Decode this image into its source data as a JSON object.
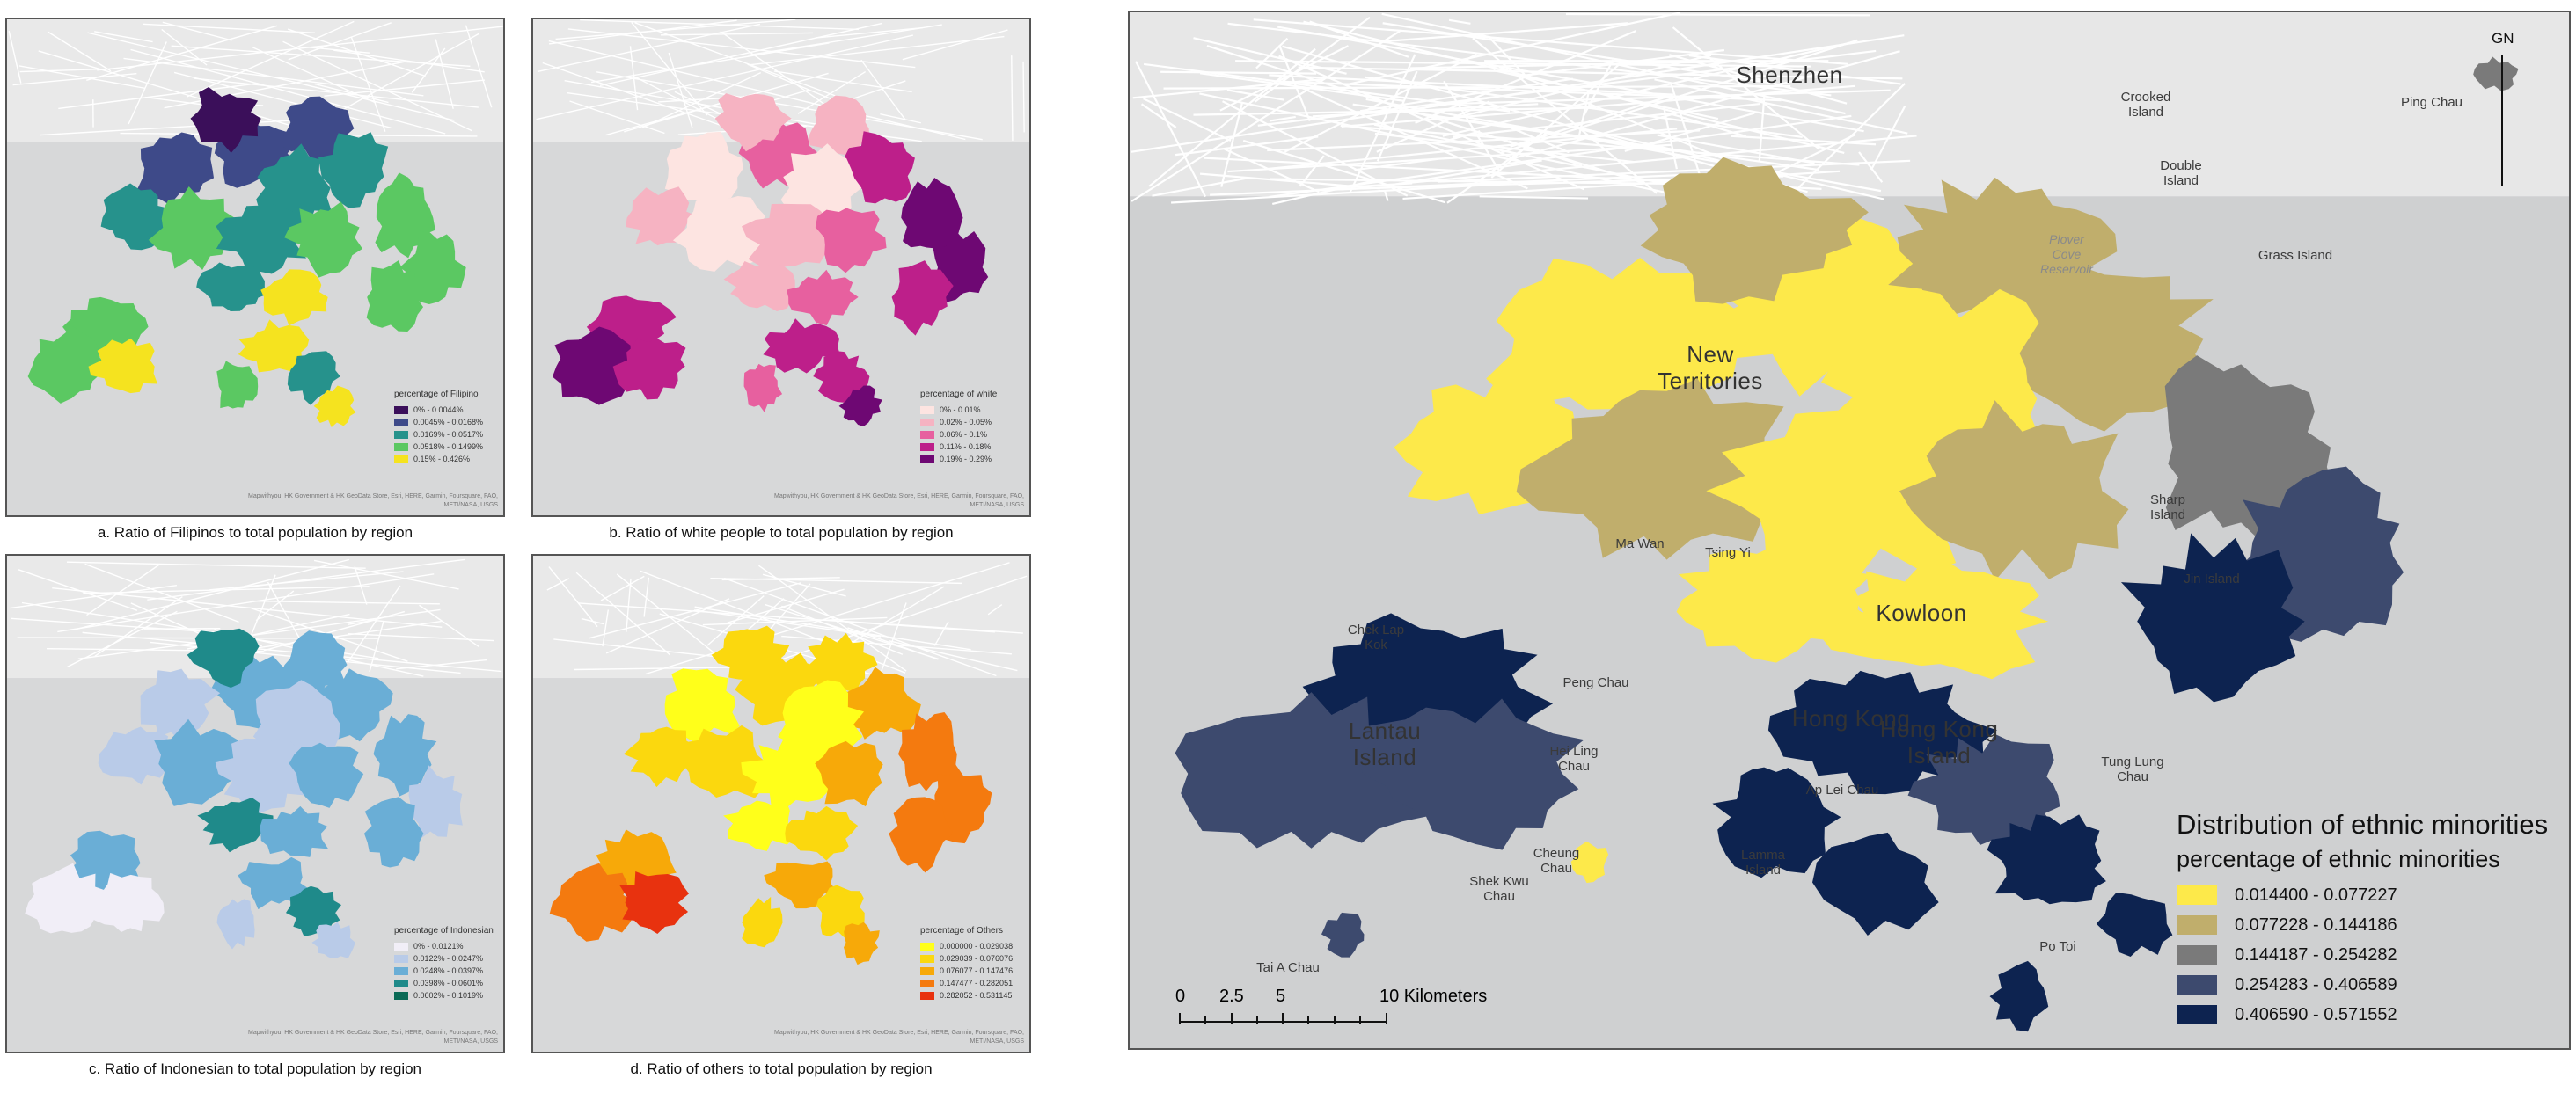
{
  "panels": [
    {
      "id": "a",
      "caption": "a. Ratio of Filipinos to total population by region",
      "legend_title": "percentage of Filipino",
      "classes": [
        {
          "label": "0% - 0.0044%",
          "color": "#3b0f5a"
        },
        {
          "label": "0.0045% - 0.0168%",
          "color": "#3e4a89"
        },
        {
          "label": "0.0169% - 0.0517%",
          "color": "#26928c"
        },
        {
          "label": "0.0518% - 0.1499%",
          "color": "#5bc862"
        },
        {
          "label": "0.15% - 0.426%",
          "color": "#f5e31f"
        }
      ],
      "attribution": "Mapwithyou, HK Government & HK GeoData Store, Esri, HERE, Garmin, Foursquare, FAO, METI/NASA, USGS"
    },
    {
      "id": "b",
      "caption": "b. Ratio of white people to total population by region",
      "legend_title": "percentage of white",
      "classes": [
        {
          "label": "0% - 0.01%",
          "color": "#fde4e1"
        },
        {
          "label": "0.02% - 0.05%",
          "color": "#f6b3c2"
        },
        {
          "label": "0.06% - 0.1%",
          "color": "#e7609f"
        },
        {
          "label": "0.11% - 0.18%",
          "color": "#bd1f8a"
        },
        {
          "label": "0.19% - 0.29%",
          "color": "#6e0873"
        }
      ],
      "attribution": "Mapwithyou, HK Government & HK GeoData Store, Esri, HERE, Garmin, Foursquare, FAO, METI/NASA, USGS"
    },
    {
      "id": "c",
      "caption": "c. Ratio of Indonesian to total population by region",
      "legend_title": "percentage of Indonesian",
      "classes": [
        {
          "label": "0% - 0.0121%",
          "color": "#f1eef7"
        },
        {
          "label": "0.0122% - 0.0247%",
          "color": "#b9cbe8"
        },
        {
          "label": "0.0248% - 0.0397%",
          "color": "#6aaed6"
        },
        {
          "label": "0.0398% - 0.0601%",
          "color": "#1f8a8a"
        },
        {
          "label": "0.0602% - 0.1019%",
          "color": "#0a6a56"
        }
      ],
      "attribution": "Mapwithyou, HK Government & HK GeoData Store, Esri, HERE, Garmin, Foursquare, FAO, METI/NASA, USGS"
    },
    {
      "id": "d",
      "caption": "d. Ratio of others to total population by region",
      "legend_title": "percentage of Others",
      "classes": [
        {
          "label": "0.000000 - 0.029038",
          "color": "#ffff1a"
        },
        {
          "label": "0.029039 - 0.076076",
          "color": "#fbd80e"
        },
        {
          "label": "0.076077 - 0.147476",
          "color": "#f7a909"
        },
        {
          "label": "0.147477 - 0.282051",
          "color": "#f47a0f"
        },
        {
          "label": "0.282052 - 0.531145",
          "color": "#e8320f"
        }
      ],
      "attribution": "Mapwithyou, HK Government & HK GeoData Store, Esri, HERE, Garmin, Foursquare, FAO, METI/NASA, USGS"
    }
  ],
  "main_map": {
    "legend_title": "Distribution of ethnic minorities",
    "legend_subtitle": "percentage of ethnic minorities",
    "classes": [
      {
        "label": "0.014400 - 0.077227",
        "color": "#fde94a"
      },
      {
        "label": "0.077228 - 0.144186",
        "color": "#c0ae6c"
      },
      {
        "label": "0.144187 - 0.254282",
        "color": "#7a7a7a"
      },
      {
        "label": "0.254283 - 0.406589",
        "color": "#3d4a6e"
      },
      {
        "label": "0.406590 - 0.571552",
        "color": "#0d2350"
      }
    ],
    "north_label": "GN",
    "scale": {
      "labels": [
        "0",
        "2.5",
        "5",
        "10 Kilometers"
      ]
    },
    "places": {
      "shenzhen": "Shenzhen",
      "crooked": "Crooked\nIsland",
      "ping_chau": "Ping Chau",
      "double": "Double\nIsland",
      "plover": "Plover\nCove\nReservoir",
      "grass": "Grass Island",
      "new_territories": "New\nTerritories",
      "sharp": "Sharp\nIsland",
      "ma_wan": "Ma Wan",
      "tsing_yi": "Tsing Yi",
      "jin": "Jin Island",
      "kowloon": "Kowloon",
      "chek_lap_kok": "Chek Lap\nKok",
      "peng_chau": "Peng Chau",
      "lantau": "Lantau\nIsland",
      "hong_kong": "Hong Kong",
      "hk_island": "Hong Kong\nIsland",
      "hei_ling": "Hei Ling\nChau",
      "tung_lung": "Tung Lung\nChau",
      "ap_lei": "Ap Lei Chau",
      "cheung_chau": "Cheung\nChau",
      "lamma": "Lamma\nIsland",
      "shek_kwu": "Shek Kwu\nChau",
      "po_toi": "Po Toi",
      "tai_a": "Tai A Chau"
    }
  }
}
